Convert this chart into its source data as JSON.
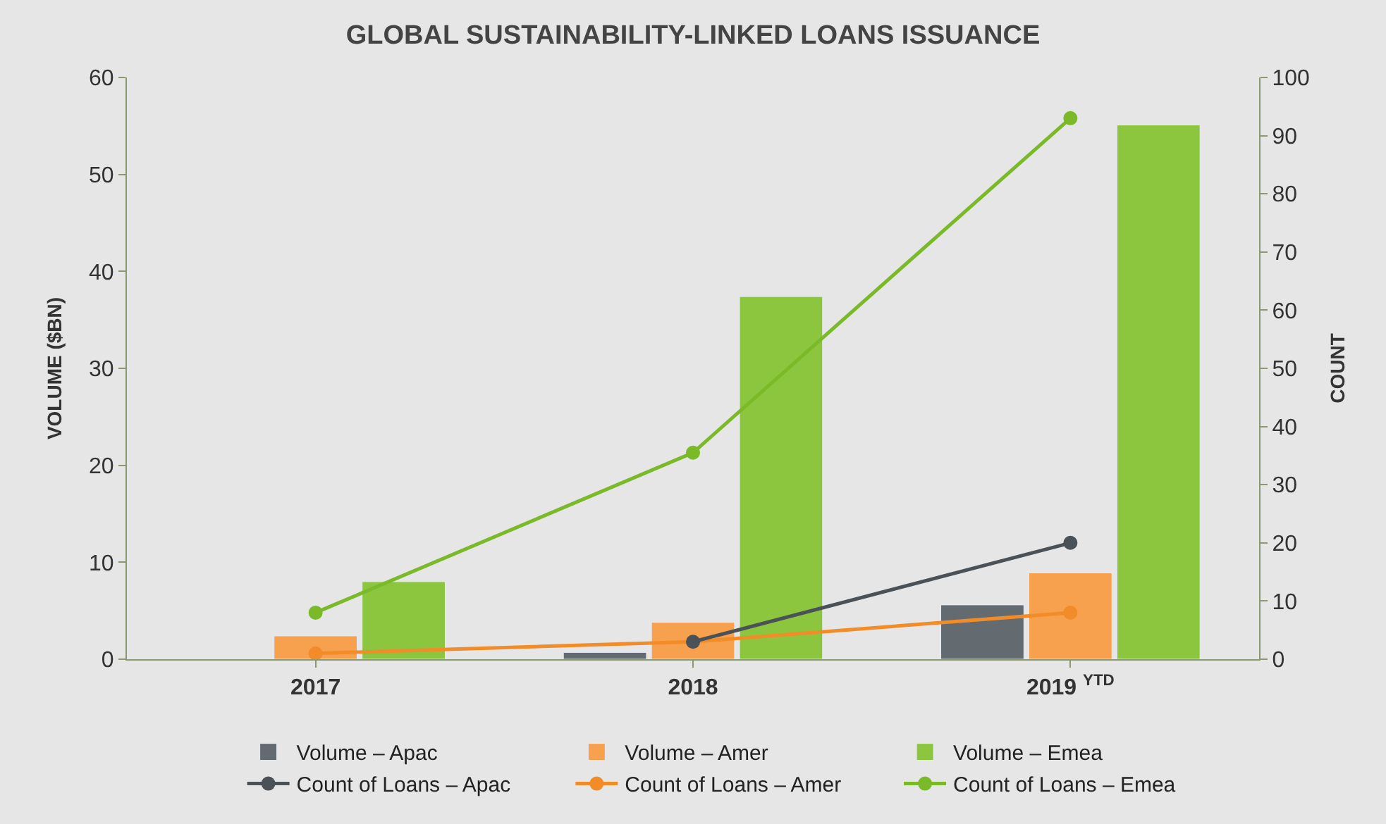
{
  "chart_data": {
    "type": "bar",
    "title": "GLOBAL SUSTAINABILITY-LINKED LOANS ISSUANCE",
    "categories": [
      "2017",
      "2018",
      "2019 $^{YTD}$"
    ],
    "ylabel": "VOLUME ($BN)",
    "y2label": "COUNT",
    "ylim": [
      0,
      60
    ],
    "yticks": [
      0,
      10,
      20,
      30,
      40,
      50,
      60
    ],
    "y2lim": [
      0,
      100
    ],
    "y2ticks": [
      0,
      10,
      20,
      30,
      40,
      50,
      60,
      70,
      80,
      90,
      100
    ],
    "grid": false,
    "legend": "bottom",
    "marker": "circle",
    "series": [
      {
        "name": "Volume – Apac",
        "color": "#646b70",
        "values": [
          null,
          0.7,
          5.6
        ]
      },
      {
        "name": "Volume – Amer",
        "color": "#f7a04e",
        "values": [
          2.4,
          3.8,
          8.9
        ]
      },
      {
        "name": "Volume – Emea",
        "color": "#8cc63f",
        "values": [
          8.0,
          37.4,
          55.1
        ]
      },
      {
        "name": "Count of Loans – Apac",
        "type": "line",
        "axis": "y2",
        "color": "#4a5157",
        "values": [
          null,
          3,
          20
        ]
      },
      {
        "name": "Count of Loans – Amer",
        "type": "line",
        "axis": "y2",
        "color": "#f28c28",
        "values": [
          1,
          3,
          8
        ]
      },
      {
        "name": "Count of Loans – Emea",
        "type": "line",
        "axis": "y2",
        "color": "#7aba28",
        "values": [
          8,
          35.5,
          93
        ]
      }
    ]
  }
}
